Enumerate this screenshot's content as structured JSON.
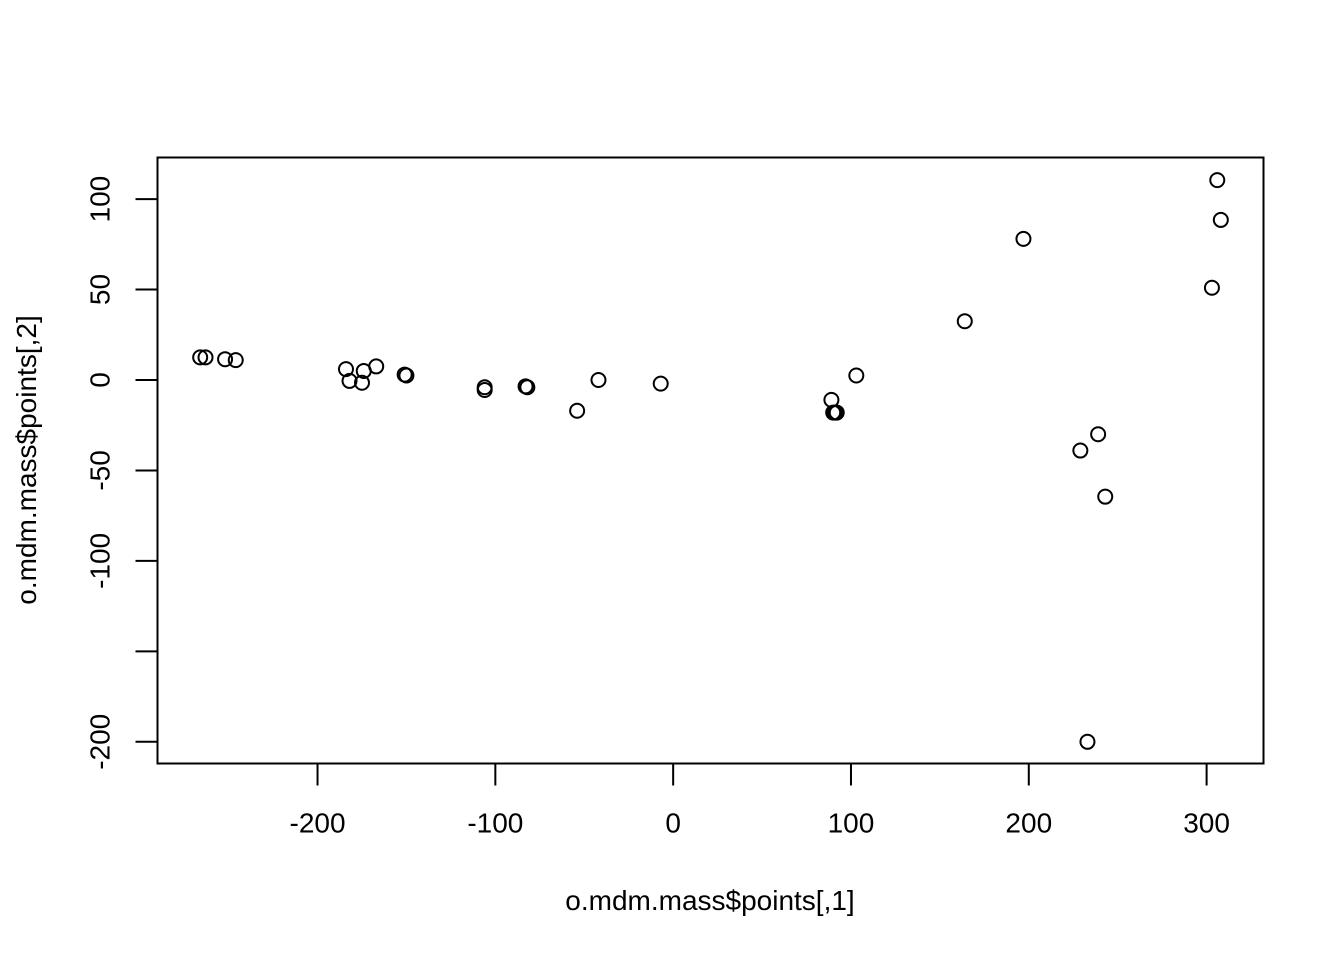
{
  "chart_data": {
    "type": "scatter",
    "title": "",
    "xlabel": "o.mdm.mass$points[,1]",
    "ylabel": "o.mdm.mass$points[,2]",
    "xlim": [
      -290,
      332
    ],
    "ylim": [
      -212,
      123
    ],
    "x_ticks": [
      -200,
      -100,
      0,
      100,
      200,
      300
    ],
    "x_tick_labels": [
      "-200",
      "-100",
      "0",
      "100",
      "200",
      "300"
    ],
    "y_ticks": [
      -200,
      -150,
      -100,
      -50,
      0,
      50,
      100
    ],
    "y_tick_labels": [
      "-200",
      "",
      "-100",
      "-50",
      "0",
      "50",
      "100"
    ],
    "grid": false,
    "marker": "open-circle",
    "points": [
      {
        "x": -266,
        "y": 12.5
      },
      {
        "x": -263,
        "y": 12.5
      },
      {
        "x": -252,
        "y": 11.5
      },
      {
        "x": -246,
        "y": 11
      },
      {
        "x": -184,
        "y": 6
      },
      {
        "x": -182,
        "y": -0.5
      },
      {
        "x": -175,
        "y": -1.5
      },
      {
        "x": -174,
        "y": 5
      },
      {
        "x": -167,
        "y": 7.5
      },
      {
        "x": -151,
        "y": 3
      },
      {
        "x": -150,
        "y": 2.5
      },
      {
        "x": -106,
        "y": -4
      },
      {
        "x": -106,
        "y": -5.5
      },
      {
        "x": -83,
        "y": -3.5
      },
      {
        "x": -82,
        "y": -4
      },
      {
        "x": -54,
        "y": -17
      },
      {
        "x": -42,
        "y": 0
      },
      {
        "x": -7,
        "y": -2
      },
      {
        "x": 89,
        "y": -11
      },
      {
        "x": 90,
        "y": -18
      },
      {
        "x": 91,
        "y": -18
      },
      {
        "x": 92,
        "y": -18
      },
      {
        "x": 103,
        "y": 2.5
      },
      {
        "x": 164,
        "y": 32.5
      },
      {
        "x": 197,
        "y": 78
      },
      {
        "x": 229,
        "y": -39
      },
      {
        "x": 233,
        "y": -200
      },
      {
        "x": 239,
        "y": -30
      },
      {
        "x": 243,
        "y": -64.5
      },
      {
        "x": 303,
        "y": 51
      },
      {
        "x": 306,
        "y": 110.5
      },
      {
        "x": 308,
        "y": 88.5
      }
    ]
  }
}
